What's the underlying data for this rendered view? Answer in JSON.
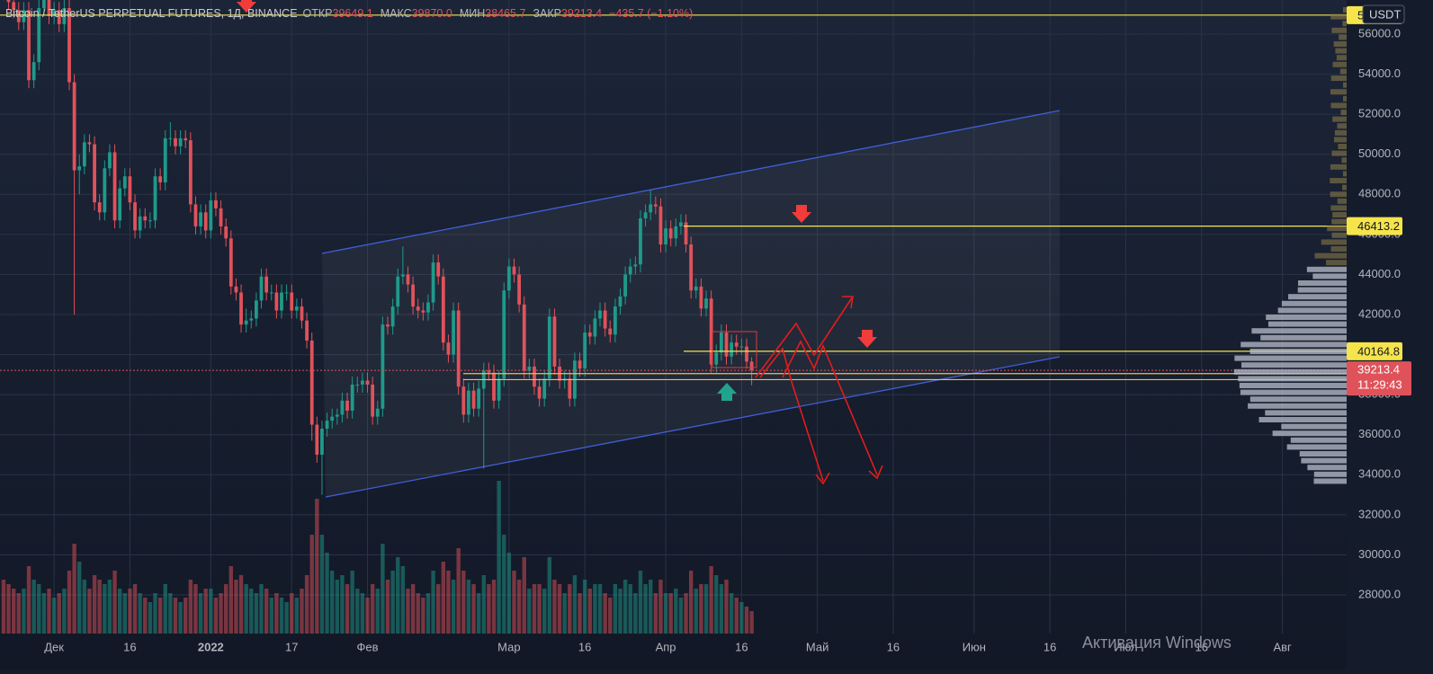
{
  "chart_data": {
    "type": "candlestick",
    "header": {
      "symbol": "Bitcoin / TetherUS PERPETUAL FUTURES, 1Д, BINANCE",
      "open_label": "ОТКР",
      "open_value": "39649.1",
      "high_label": "МАКС",
      "high_value": "39870.0",
      "low_label": "МИН",
      "low_value": "38465.7",
      "close_label": "ЗАКР",
      "close_value": "39213.4",
      "change": "−435.7 (−1.10%)"
    },
    "currency": "USDT",
    "countdown": "11:29:43",
    "watermark": "Активация Windows",
    "x": [
      -10,
      -9,
      -8,
      -7,
      -6,
      -5,
      -4,
      -3,
      -2,
      -1,
      0,
      1,
      2,
      3,
      4,
      5,
      6,
      7,
      8,
      9,
      10,
      11,
      12,
      13,
      14,
      15,
      16,
      17,
      18,
      19,
      20,
      21,
      22,
      23,
      24,
      25,
      26,
      27,
      28,
      29,
      30,
      31,
      32,
      33,
      34,
      35,
      36,
      37,
      38,
      39,
      40,
      41,
      42,
      43,
      44,
      45,
      46,
      47,
      48,
      49,
      50,
      51,
      52,
      53,
      54,
      55,
      56,
      57,
      58,
      59,
      60,
      61,
      62,
      63,
      64,
      65,
      66,
      67,
      68,
      69,
      70,
      71,
      72,
      73,
      74,
      75,
      76,
      77,
      78,
      79,
      80,
      81,
      82,
      83,
      84,
      85,
      86,
      87,
      88,
      89,
      90,
      91,
      92,
      93,
      94,
      95,
      96,
      97,
      98,
      99,
      100,
      101,
      102,
      103,
      104,
      105,
      106,
      107,
      108,
      109,
      110,
      111,
      112,
      113,
      114,
      115,
      116,
      117,
      118,
      119,
      120,
      121,
      122,
      123,
      124,
      125,
      126,
      127,
      128,
      129,
      130,
      131,
      132,
      133,
      134,
      135,
      136,
      137,
      138
    ],
    "open": [
      58500,
      58100,
      57600,
      57200,
      56600,
      57200,
      53700,
      54600,
      57300,
      57800,
      56900,
      57200,
      56500,
      57300,
      53600,
      49200,
      49400,
      50600,
      50500,
      47600,
      47100,
      49300,
      50100,
      46700,
      48300,
      48900,
      47600,
      46200,
      46900,
      46700,
      46700,
      48900,
      48600,
      50800,
      50800,
      50400,
      50800,
      50700,
      47500,
      46400,
      47100,
      46200,
      47700,
      47300,
      46400,
      45800,
      43400,
      43100,
      41500,
      41700,
      41800,
      42700,
      43900,
      43100,
      43100,
      42200,
      43100,
      43100,
      42200,
      42400,
      41700,
      40700,
      36500,
      35000,
      36300,
      36700,
      36900,
      37000,
      37700,
      37200,
      38500,
      38500,
      38700,
      38500,
      36900,
      37300,
      41500,
      41400,
      42400,
      43900,
      44000,
      43500,
      42400,
      42200,
      42100,
      42600,
      44600,
      43900,
      40600,
      40000,
      42200,
      38400,
      37000,
      38200,
      37300,
      38300,
      39200,
      39100,
      37700,
      38800,
      43200,
      44400,
      44000,
      42500,
      39200,
      39400,
      38400,
      37800,
      38800,
      41900,
      39400,
      38700,
      38800,
      37800,
      39700,
      39300,
      41100,
      40900,
      41800,
      42200,
      41300,
      41000,
      42400,
      42900,
      44000,
      44400,
      44500,
      46800,
      47100,
      47500,
      47400,
      45500,
      46300,
      45800,
      46400,
      46600,
      45500,
      43200,
      43400,
      42300,
      42800,
      39500,
      40100,
      41100,
      39900,
      40600,
      40400,
      40400,
      39649.1
    ],
    "high": [
      58900,
      58500,
      58000,
      57600,
      57600,
      57600,
      55000,
      57700,
      58200,
      58200,
      57600,
      57600,
      57700,
      57700,
      54000,
      50000,
      51000,
      51000,
      50900,
      48000,
      49700,
      50500,
      50500,
      48700,
      49300,
      49300,
      48000,
      47300,
      47300,
      47100,
      49300,
      49300,
      51200,
      51600,
      51200,
      51200,
      51200,
      51100,
      47900,
      47500,
      47500,
      48100,
      48100,
      47700,
      46800,
      46200,
      43800,
      43500,
      42300,
      42200,
      43100,
      44300,
      44300,
      43500,
      43500,
      43500,
      43500,
      43500,
      42800,
      42800,
      42100,
      41100,
      36900,
      36700,
      37100,
      37300,
      37300,
      38100,
      38100,
      38900,
      38900,
      39100,
      39100,
      38900,
      37700,
      41900,
      41900,
      42800,
      44300,
      45400,
      44400,
      43900,
      42800,
      42600,
      43000,
      45000,
      45000,
      44300,
      41000,
      42600,
      42600,
      38800,
      38600,
      38600,
      38700,
      39600,
      39600,
      39500,
      39200,
      43600,
      44800,
      44800,
      44400,
      42900,
      39800,
      39800,
      38800,
      39200,
      42300,
      42300,
      39800,
      39200,
      39200,
      40100,
      40100,
      41500,
      41500,
      42200,
      42600,
      42600,
      41700,
      42800,
      43300,
      44400,
      44800,
      44900,
      47200,
      47500,
      48200,
      47900,
      47800,
      46700,
      46700,
      46800,
      47000,
      47000,
      45900,
      43800,
      43800,
      43200,
      43200,
      40500,
      41500,
      41500,
      41000,
      41000,
      40800,
      40800,
      39870
    ],
    "low": [
      57700,
      57200,
      56800,
      56200,
      56200,
      53300,
      53300,
      54200,
      56900,
      56500,
      56500,
      56100,
      56100,
      53200,
      42000,
      48000,
      49000,
      50100,
      47200,
      46700,
      46700,
      48900,
      46300,
      46300,
      47900,
      47200,
      45800,
      45800,
      46300,
      46300,
      46300,
      48200,
      48200,
      50400,
      50000,
      50000,
      50300,
      47100,
      46000,
      46000,
      45800,
      45800,
      46900,
      46000,
      45400,
      43000,
      42700,
      41100,
      41100,
      41300,
      41400,
      42300,
      42700,
      42700,
      41800,
      41800,
      42700,
      41800,
      41800,
      41300,
      40300,
      35700,
      34600,
      33000,
      35900,
      36300,
      36500,
      36600,
      36800,
      36800,
      38100,
      38100,
      38100,
      36500,
      36500,
      36900,
      41000,
      41000,
      42000,
      43500,
      43100,
      42000,
      41800,
      41700,
      41700,
      42200,
      43500,
      40200,
      39600,
      39600,
      38000,
      36600,
      36600,
      36900,
      36900,
      34300,
      38700,
      37300,
      37300,
      38400,
      42800,
      43600,
      42100,
      38800,
      38800,
      38000,
      37400,
      37400,
      38400,
      39000,
      38300,
      38300,
      37400,
      37400,
      38900,
      38900,
      40500,
      40500,
      41400,
      40900,
      40600,
      40600,
      42000,
      42500,
      43600,
      44000,
      44100,
      46400,
      46700,
      47000,
      45100,
      45100,
      45400,
      45400,
      46000,
      45100,
      42800,
      42800,
      41900,
      41900,
      39100,
      39100,
      39700,
      39500,
      39500,
      40000,
      40000,
      39300,
      38465.7
    ],
    "close": [
      58100,
      57600,
      57200,
      56600,
      57200,
      53700,
      54600,
      57300,
      57800,
      56900,
      57200,
      56500,
      57300,
      53600,
      49200,
      49400,
      50600,
      50500,
      47600,
      47100,
      49300,
      50100,
      46700,
      48300,
      48900,
      47600,
      46200,
      46900,
      46700,
      46700,
      48900,
      48600,
      50800,
      50800,
      50400,
      50800,
      50700,
      47500,
      46400,
      47100,
      46200,
      47700,
      47300,
      46400,
      45800,
      43400,
      43100,
      41500,
      41700,
      41800,
      42700,
      43900,
      43100,
      43100,
      42200,
      43100,
      43100,
      42200,
      42400,
      41700,
      40700,
      36500,
      35000,
      36300,
      36700,
      36900,
      37000,
      37700,
      37200,
      38500,
      38500,
      38700,
      38500,
      36900,
      37300,
      41500,
      41400,
      42400,
      43900,
      44000,
      43500,
      42400,
      42200,
      42100,
      42600,
      44600,
      43900,
      40600,
      40000,
      42200,
      38400,
      37000,
      38200,
      37300,
      38300,
      39200,
      39100,
      37700,
      38800,
      43200,
      44400,
      44000,
      42500,
      39200,
      39400,
      38400,
      37800,
      38800,
      41900,
      39400,
      38700,
      38800,
      37800,
      39700,
      39300,
      41100,
      40900,
      41800,
      42200,
      41300,
      41000,
      42400,
      42900,
      44000,
      44400,
      44500,
      46800,
      47100,
      47500,
      47400,
      45500,
      46300,
      45800,
      46400,
      46600,
      45500,
      43200,
      43400,
      42300,
      42800,
      39500,
      40100,
      41100,
      39900,
      40600,
      40400,
      40400,
      39649.1,
      39213.4
    ],
    "volume": [
      60,
      55,
      50,
      45,
      50,
      75,
      60,
      55,
      45,
      50,
      40,
      45,
      50,
      70,
      100,
      80,
      60,
      50,
      65,
      60,
      55,
      60,
      70,
      50,
      45,
      50,
      55,
      45,
      40,
      35,
      45,
      40,
      55,
      45,
      40,
      35,
      40,
      60,
      55,
      45,
      50,
      50,
      40,
      45,
      55,
      75,
      60,
      65,
      55,
      50,
      45,
      55,
      50,
      40,
      45,
      40,
      35,
      45,
      40,
      50,
      65,
      110,
      150,
      110,
      90,
      70,
      60,
      65,
      55,
      70,
      50,
      45,
      40,
      55,
      50,
      100,
      60,
      70,
      85,
      75,
      50,
      55,
      45,
      40,
      45,
      70,
      55,
      80,
      70,
      60,
      95,
      70,
      60,
      55,
      45,
      65,
      55,
      60,
      170,
      110,
      90,
      70,
      60,
      85,
      50,
      55,
      55,
      50,
      85,
      60,
      55,
      45,
      55,
      65,
      45,
      60,
      50,
      55,
      55,
      45,
      40,
      55,
      50,
      60,
      55,
      45,
      70,
      55,
      60,
      45,
      60,
      45,
      45,
      50,
      40,
      45,
      70,
      50,
      55,
      55,
      75,
      65,
      55,
      60,
      45,
      40,
      35,
      30,
      25
    ],
    "up_color": "#1f9a8a",
    "down_color": "#e0525a",
    "levels": [
      56950,
      46413.2,
      40164.8
    ],
    "level_color": "#f5e44b",
    "zone_lines": [
      39050,
      38750
    ],
    "zone_color": "#e8c25a",
    "xlim": [
      -10.7,
      255.7
    ],
    "xticks": [
      {
        "value": 0,
        "label": "Дек"
      },
      {
        "value": 15,
        "label": "16"
      },
      {
        "value": 31,
        "label": "2022"
      },
      {
        "value": 47,
        "label": "17"
      },
      {
        "value": 62,
        "label": "Фев"
      },
      {
        "value": 90,
        "label": "Мар"
      },
      {
        "value": 105,
        "label": "16"
      },
      {
        "value": 121,
        "label": "Апр"
      },
      {
        "value": 136,
        "label": "16"
      },
      {
        "value": 151,
        "label": "Май"
      },
      {
        "value": 166,
        "label": "16"
      },
      {
        "value": 182,
        "label": "Июн"
      },
      {
        "value": 197,
        "label": "16"
      },
      {
        "value": 212,
        "label": "Июл"
      },
      {
        "value": 227,
        "label": "16"
      },
      {
        "value": 243,
        "label": "Авг"
      }
    ],
    "ylim": [
      26070,
      57705
    ],
    "yticks": [
      {
        "value": 28000,
        "label": "28000.0"
      },
      {
        "value": 30000,
        "label": "30000.0"
      },
      {
        "value": 32000,
        "label": "32000.0"
      },
      {
        "value": 34000,
        "label": "34000.0"
      },
      {
        "value": 36000,
        "label": "36000.0"
      },
      {
        "value": 38000,
        "label": "38000.0"
      },
      {
        "value": 40000,
        "label": "40000.0"
      },
      {
        "value": 42000,
        "label": "42000.0"
      },
      {
        "value": 44000,
        "label": "44000.0"
      },
      {
        "value": 46000,
        "label": "46000.0"
      },
      {
        "value": 48000,
        "label": "48000.0"
      },
      {
        "value": 50000,
        "label": "50000.0"
      },
      {
        "value": 52000,
        "label": "52000.0"
      },
      {
        "value": 54000,
        "label": "54000.0"
      },
      {
        "value": 56000,
        "label": "56000.0"
      }
    ],
    "grid": true
  }
}
